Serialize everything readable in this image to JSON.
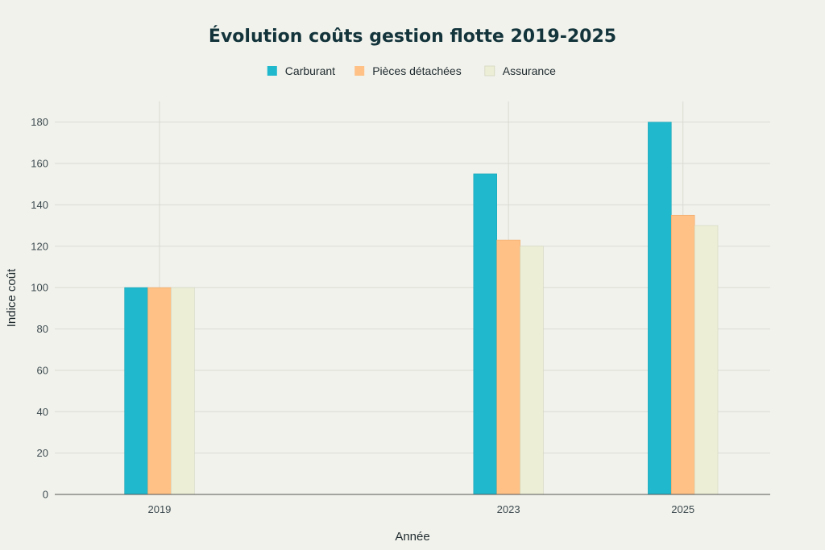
{
  "chart_data": {
    "type": "bar",
    "title": "Évolution coûts gestion flotte 2019-2025",
    "xlabel": "Année",
    "ylabel": "Indice coût",
    "x": [
      2019,
      2023,
      2025
    ],
    "xlim": [
      2017.8,
      2026
    ],
    "ylim": [
      0,
      190
    ],
    "yticks": [
      0,
      20,
      40,
      60,
      80,
      100,
      120,
      140,
      160,
      180
    ],
    "grid": true,
    "legend_position": "top-center",
    "series": [
      {
        "name": "Carburant",
        "color": "#1fb8cd",
        "values": [
          100,
          155,
          180
        ]
      },
      {
        "name": "Pièces détachées",
        "color": "#ffc185",
        "values": [
          100,
          123,
          135
        ]
      },
      {
        "name": "Assurance",
        "color": "#eceed6",
        "values": [
          100,
          120,
          130
        ]
      }
    ]
  }
}
